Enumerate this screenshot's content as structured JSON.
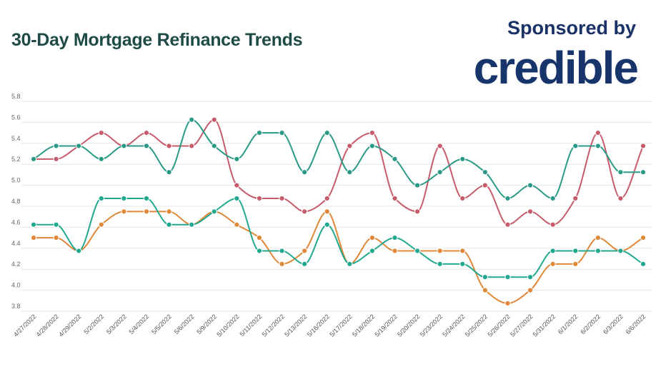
{
  "title": "30-Day Mortgage Refinance Trends",
  "sponsor": {
    "label": "Sponsored by",
    "logo_text": "credible"
  },
  "chart_data": {
    "type": "line",
    "title": "30-Day Mortgage Refinance Trends",
    "xlabel": "",
    "ylabel": "",
    "ylim": [
      3.8,
      5.8
    ],
    "yticks": [
      "5.8",
      "5.6",
      "5.4",
      "5.2",
      "5.0",
      "4.8",
      "4.6",
      "4.4",
      "4.2",
      "4.0",
      "3.8"
    ],
    "grid": true,
    "legend": "none",
    "categories": [
      "4/27/2022",
      "4/28/2022",
      "4/29/2022",
      "5/2/2022",
      "5/3/2022",
      "5/4/2022",
      "5/5/2022",
      "5/6/2022",
      "5/9/2022",
      "5/10/2022",
      "5/11/2022",
      "5/12/2022",
      "5/13/2022",
      "5/16/2022",
      "5/17/2022",
      "5/18/2022",
      "5/19/2022",
      "5/20/2022",
      "5/23/2022",
      "5/24/2022",
      "5/25/2022",
      "5/26/2022",
      "5/27/2022",
      "5/31/2022",
      "6/1/2022",
      "6/2/2022",
      "6/3/2022",
      "6/6/2022"
    ],
    "series": [
      {
        "color": "#c65b6b",
        "values": [
          5.25,
          5.25,
          5.375,
          5.5,
          5.375,
          5.5,
          5.375,
          5.375,
          5.625,
          5.0,
          4.875,
          4.875,
          4.75,
          4.875,
          5.375,
          5.5,
          4.875,
          4.75,
          5.375,
          4.875,
          5.0,
          4.625,
          4.75,
          4.625,
          4.875,
          5.5,
          4.875,
          5.375
        ]
      },
      {
        "color": "#2a9a86",
        "values": [
          5.25,
          5.375,
          5.375,
          5.25,
          5.375,
          5.375,
          5.125,
          5.625,
          5.375,
          5.25,
          5.5,
          5.5,
          5.125,
          5.5,
          5.125,
          5.375,
          5.25,
          5.0,
          5.125,
          5.25,
          5.125,
          4.875,
          5.0,
          4.875,
          5.375,
          5.375,
          5.125,
          5.125
        ]
      },
      {
        "color": "#e0883a",
        "values": [
          4.5,
          4.5,
          4.375,
          4.625,
          4.75,
          4.75,
          4.75,
          4.625,
          4.75,
          4.625,
          4.5,
          4.25,
          4.375,
          4.75,
          4.25,
          4.5,
          4.375,
          4.375,
          4.375,
          4.375,
          4.0,
          3.875,
          4.0,
          4.25,
          4.25,
          4.5,
          4.375,
          4.5
        ]
      },
      {
        "color": "#22a88f",
        "values": [
          4.625,
          4.625,
          4.375,
          4.875,
          4.875,
          4.875,
          4.625,
          4.625,
          4.75,
          4.875,
          4.375,
          4.375,
          4.25,
          4.625,
          4.25,
          4.375,
          4.5,
          4.375,
          4.25,
          4.25,
          4.125,
          4.125,
          4.125,
          4.375,
          4.375,
          4.375,
          4.375,
          4.25
        ]
      }
    ]
  }
}
